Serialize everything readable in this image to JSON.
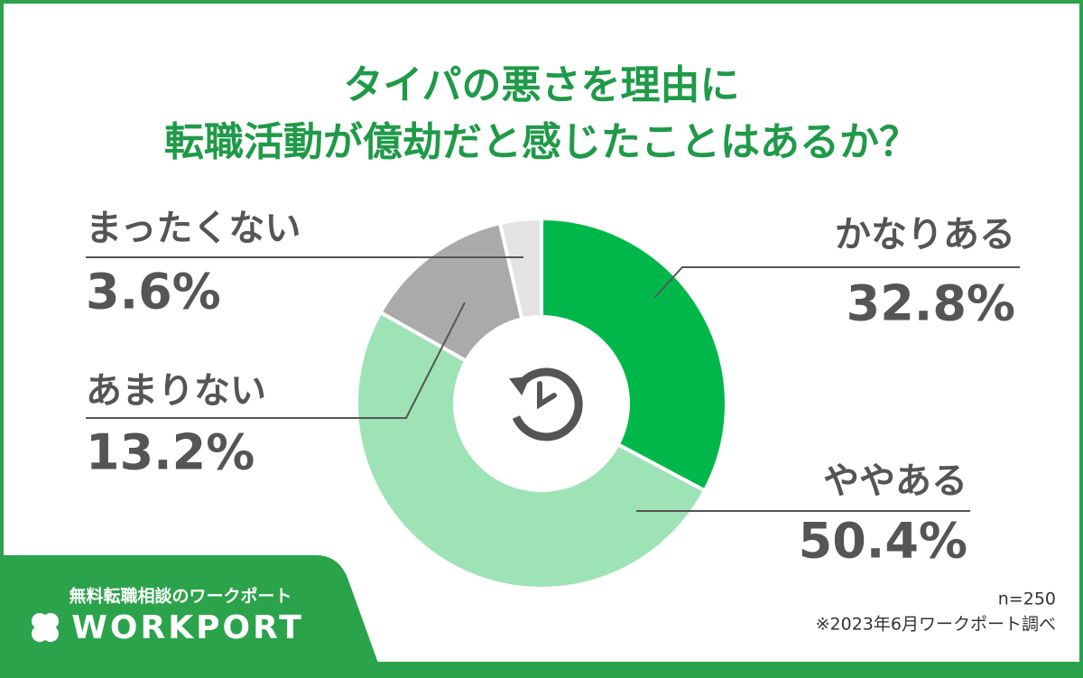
{
  "chart_data": {
    "type": "donut",
    "title_lines": [
      "タイパの悪さを理由に",
      "転職活動が億劫だと感じたことはあるか？"
    ],
    "categories": [
      "かなりある",
      "ややある",
      "あまりない",
      "まったくない"
    ],
    "values": [
      32.8,
      50.4,
      13.2,
      3.6
    ],
    "value_labels": [
      "32.8%",
      "50.4%",
      "13.2%",
      "3.6%"
    ],
    "colors": [
      "#00b84a",
      "#9de3b5",
      "#aaaaaa",
      "#e3e3e3"
    ],
    "sample_size": "n=250",
    "source": "※2023年6月ワークポート調べ",
    "brand_tagline": "無料転職相談のワークポート",
    "brand_name": "WORKPORT"
  }
}
